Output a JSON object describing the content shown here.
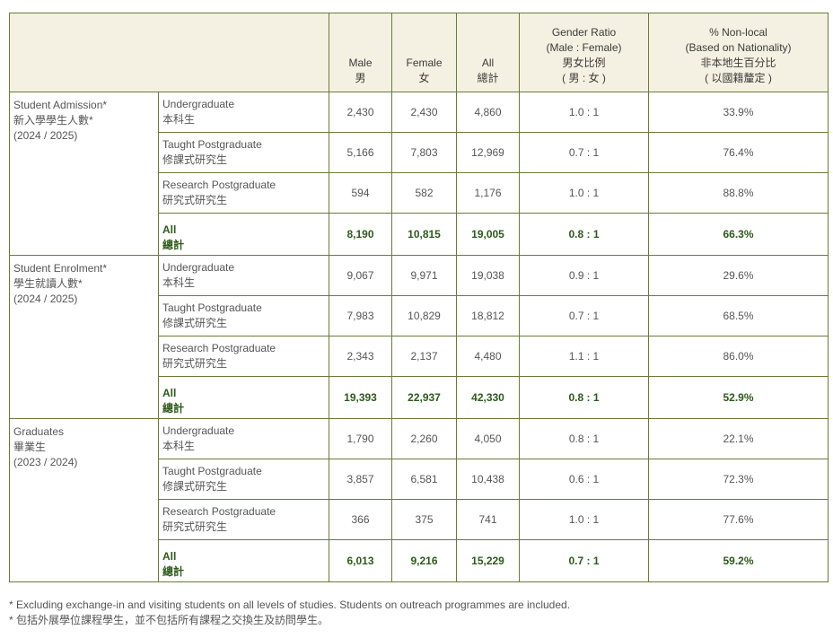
{
  "header": {
    "male_en": "Male",
    "male_zh": "男",
    "female_en": "Female",
    "female_zh": "女",
    "all_en": "All",
    "all_zh": "總計",
    "ratio_line1": "Gender Ratio",
    "ratio_line2": "(Male : Female)",
    "ratio_line3": "男女比例",
    "ratio_line4": "( 男 : 女 )",
    "nonlocal_line1": "% Non-local",
    "nonlocal_line2": "(Based on Nationality)",
    "nonlocal_line3": "非本地生百分比",
    "nonlocal_line4": "( 以國籍釐定 )"
  },
  "levels": {
    "ug_en": "Undergraduate",
    "ug_zh": "本科生",
    "tpg_en": "Taught Postgraduate",
    "tpg_zh": "修課式研究生",
    "rpg_en": "Research Postgraduate",
    "rpg_zh": "研究式研究生",
    "all_en": "All",
    "all_zh": "總計"
  },
  "sections": [
    {
      "title_en": "Student Admission*",
      "title_zh": "新入學學生人數*",
      "year": "(2024 / 2025)",
      "rows": [
        {
          "male": "2,430",
          "female": "2,430",
          "all": "4,860",
          "ratio": "1.0 : 1",
          "nonlocal": "33.9%"
        },
        {
          "male": "5,166",
          "female": "7,803",
          "all": "12,969",
          "ratio": "0.7 : 1",
          "nonlocal": "76.4%"
        },
        {
          "male": "594",
          "female": "582",
          "all": "1,176",
          "ratio": "1.0 : 1",
          "nonlocal": "88.8%"
        },
        {
          "male": "8,190",
          "female": "10,815",
          "all": "19,005",
          "ratio": "0.8 : 1",
          "nonlocal": "66.3%"
        }
      ]
    },
    {
      "title_en": "Student Enrolment*",
      "title_zh": "學生就讀人數*",
      "year": "(2024 / 2025)",
      "rows": [
        {
          "male": "9,067",
          "female": "9,971",
          "all": "19,038",
          "ratio": "0.9 : 1",
          "nonlocal": "29.6%"
        },
        {
          "male": "7,983",
          "female": "10,829",
          "all": "18,812",
          "ratio": "0.7 : 1",
          "nonlocal": "68.5%"
        },
        {
          "male": "2,343",
          "female": "2,137",
          "all": "4,480",
          "ratio": "1.1 : 1",
          "nonlocal": "86.0%"
        },
        {
          "male": "19,393",
          "female": "22,937",
          "all": "42,330",
          "ratio": "0.8 : 1",
          "nonlocal": "52.9%"
        }
      ]
    },
    {
      "title_en": "Graduates",
      "title_zh": "畢業生",
      "year": "(2023 / 2024)",
      "rows": [
        {
          "male": "1,790",
          "female": "2,260",
          "all": "4,050",
          "ratio": "0.8 : 1",
          "nonlocal": "22.1%"
        },
        {
          "male": "3,857",
          "female": "6,581",
          "all": "10,438",
          "ratio": "0.6 : 1",
          "nonlocal": "72.3%"
        },
        {
          "male": "366",
          "female": "375",
          "all": "741",
          "ratio": "1.0 : 1",
          "nonlocal": "77.6%"
        },
        {
          "male": "6,013",
          "female": "9,216",
          "all": "15,229",
          "ratio": "0.7 : 1",
          "nonlocal": "59.2%"
        }
      ]
    }
  ],
  "footnotes": {
    "en": "* Excluding exchange-in and visiting students on all levels of studies. Students on outreach programmes are included.",
    "zh": "* 包括外展學位課程學生，並不包括所有課程之交換生及訪問學生。"
  }
}
